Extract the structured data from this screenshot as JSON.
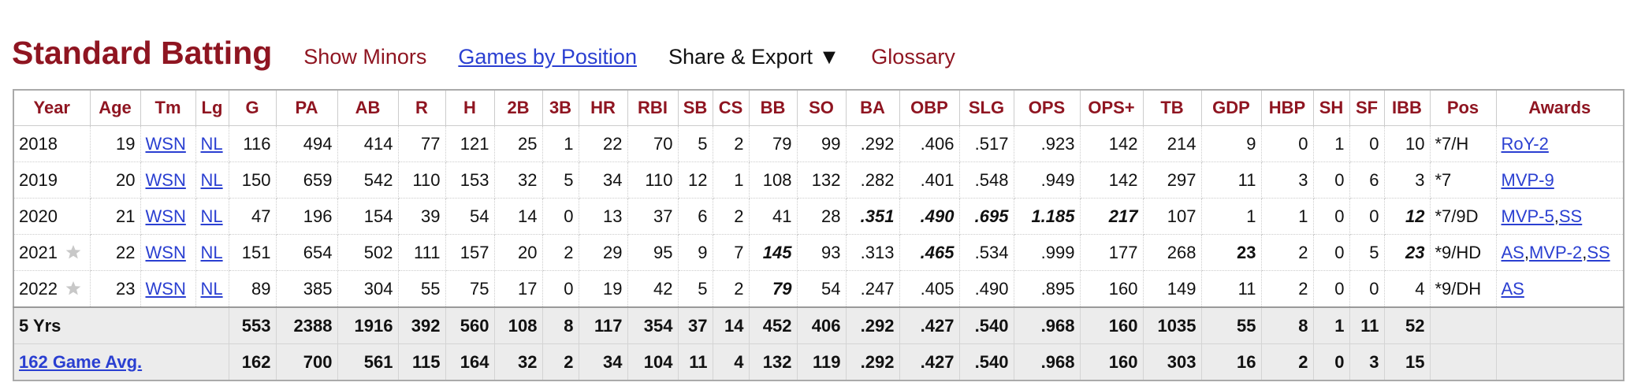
{
  "header": {
    "title": "Standard Batting",
    "show_minors": "Show Minors",
    "games_by_position": "Games by Position",
    "share_export": "Share & Export ▼",
    "glossary": "Glossary"
  },
  "table": {
    "columns": [
      "Year",
      "Age",
      "Tm",
      "Lg",
      "G",
      "PA",
      "AB",
      "R",
      "H",
      "2B",
      "3B",
      "HR",
      "RBI",
      "SB",
      "CS",
      "BB",
      "SO",
      "BA",
      "OBP",
      "SLG",
      "OPS",
      "OPS+",
      "TB",
      "GDP",
      "HBP",
      "SH",
      "SF",
      "IBB",
      "Pos",
      "Awards"
    ],
    "rows": [
      {
        "all_star": false,
        "cells": [
          "2018",
          "19",
          "WSN",
          "NL",
          "116",
          "494",
          "414",
          "77",
          "121",
          "25",
          "1",
          "22",
          "70",
          "5",
          "2",
          "79",
          "99",
          ".292",
          ".406",
          ".517",
          ".923",
          "142",
          "214",
          "9",
          "0",
          "1",
          "0",
          "10",
          "*7/H",
          [
            "RoY-2"
          ]
        ]
      },
      {
        "all_star": false,
        "cells": [
          "2019",
          "20",
          "WSN",
          "NL",
          "150",
          "659",
          "542",
          "110",
          "153",
          "32",
          "5",
          "34",
          "110",
          "12",
          "1",
          "108",
          "132",
          ".282",
          ".401",
          ".548",
          ".949",
          "142",
          "297",
          "11",
          "3",
          "0",
          "6",
          "3",
          "*7",
          [
            "MVP-9"
          ]
        ]
      },
      {
        "all_star": false,
        "cells": [
          "2020",
          "21",
          "WSN",
          "NL",
          "47",
          "196",
          "154",
          "39",
          "54",
          "14",
          "0",
          "13",
          "37",
          "6",
          "2",
          "41",
          "28",
          {
            "text": ".351",
            "emphasis": "bold-italic"
          },
          {
            "text": ".490",
            "emphasis": "bold-italic"
          },
          {
            "text": ".695",
            "emphasis": "bold-italic"
          },
          {
            "text": "1.185",
            "emphasis": "bold-italic"
          },
          {
            "text": "217",
            "emphasis": "bold-italic"
          },
          "107",
          "1",
          "1",
          "0",
          "0",
          {
            "text": "12",
            "emphasis": "bold-italic"
          },
          "*7/9D",
          [
            "MVP-5",
            ",",
            "SS"
          ]
        ]
      },
      {
        "all_star": true,
        "cells": [
          "2021",
          "22",
          "WSN",
          "NL",
          "151",
          "654",
          "502",
          "111",
          "157",
          "20",
          "2",
          "29",
          "95",
          "9",
          "7",
          {
            "text": "145",
            "emphasis": "bold-italic"
          },
          "93",
          ".313",
          {
            "text": ".465",
            "emphasis": "bold-italic"
          },
          ".534",
          ".999",
          "177",
          "268",
          {
            "text": "23",
            "emphasis": "bold"
          },
          "2",
          "0",
          "5",
          {
            "text": "23",
            "emphasis": "bold-italic"
          },
          "*9/HD",
          [
            "AS",
            ",",
            "MVP-2",
            ",",
            "SS"
          ]
        ]
      },
      {
        "all_star": true,
        "cells": [
          "2022",
          "23",
          "WSN",
          "NL",
          "89",
          "385",
          "304",
          "55",
          "75",
          "17",
          "0",
          "19",
          "42",
          "5",
          "2",
          {
            "text": "79",
            "emphasis": "bold-italic"
          },
          "54",
          ".247",
          ".405",
          ".490",
          ".895",
          "160",
          "149",
          "11",
          "2",
          "0",
          "0",
          "4",
          "*9/DH",
          [
            "AS"
          ]
        ]
      }
    ],
    "footer": [
      [
        "5 Yrs",
        "553",
        "2388",
        "1916",
        "392",
        "560",
        "108",
        "8",
        "117",
        "354",
        "37",
        "14",
        "452",
        "406",
        ".292",
        ".427",
        ".540",
        ".968",
        "160",
        "1035",
        "55",
        "8",
        "1",
        "11",
        "52"
      ],
      [
        "162 Game Avg.",
        "162",
        "700",
        "561",
        "115",
        "164",
        "32",
        "2",
        "34",
        "104",
        "11",
        "4",
        "132",
        "119",
        ".292",
        ".427",
        ".540",
        ".968",
        "160",
        "303",
        "16",
        "2",
        "0",
        "3",
        "15"
      ]
    ]
  }
}
